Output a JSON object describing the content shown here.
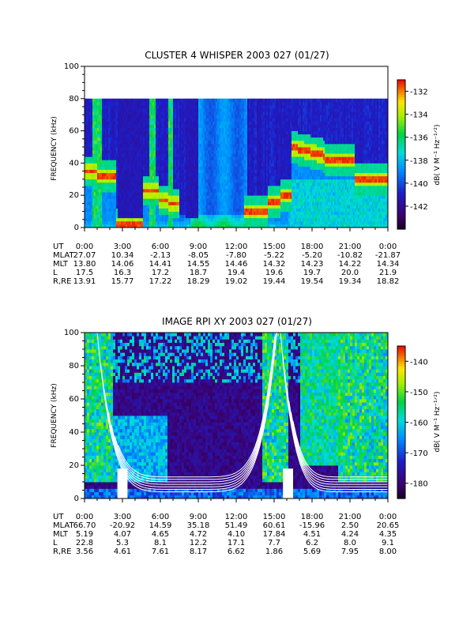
{
  "chart_data": [
    {
      "type": "heatmap",
      "title": "CLUSTER 4 WHISPER 2003 027 (01/27)",
      "ylabel": "FREQUENCY (kHz)",
      "ylim": [
        0,
        100
      ],
      "yticks": [
        "0",
        "20",
        "40",
        "60",
        "80",
        "100"
      ],
      "xticks": [
        "0:00",
        "3:00",
        "6:00",
        "9:00",
        "12:00",
        "15:00",
        "18:00",
        "21:00",
        "0:00"
      ],
      "colorbar": {
        "label": "dB( V M⁻¹ Hz⁻¹ᐟ²)",
        "ticks": [
          "-132",
          "-134",
          "-136",
          "-138",
          "-140",
          "-142"
        ],
        "range": [
          -144,
          -131
        ]
      },
      "ephemeris": [
        {
          "label": "UT",
          "values": [
            "0:00",
            "3:00",
            "6:00",
            "9:00",
            "12:00",
            "15:00",
            "18:00",
            "21:00",
            "0:00"
          ]
        },
        {
          "label": "MLAT",
          "values": [
            "27.07",
            "10.34",
            "-2.13",
            "-8.05",
            "-7.80",
            "-5.22",
            "-5.20",
            "-10.82",
            "-21.87"
          ]
        },
        {
          "label": "MLT",
          "values": [
            "13.80",
            "14.06",
            "14.41",
            "14.55",
            "14.46",
            "14.32",
            "14.23",
            "14.22",
            "14.34"
          ]
        },
        {
          "label": "L",
          "values": [
            "17.5",
            "16.3",
            "17.2",
            "18.7",
            "19.4",
            "19.6",
            "19.7",
            "20.0",
            "21.9"
          ]
        },
        {
          "label": "R,RE",
          "values": [
            "13.91",
            "15.77",
            "17.22",
            "18.29",
            "19.02",
            "19.44",
            "19.54",
            "19.34",
            "18.82"
          ]
        }
      ]
    },
    {
      "type": "heatmap",
      "title": "IMAGE RPI XY 2003 027 (01/27)",
      "ylabel": "FREQUENCY (kHz)",
      "ylim": [
        0,
        100
      ],
      "yticks": [
        "0",
        "20",
        "40",
        "60",
        "80",
        "100"
      ],
      "xticks": [
        "0:00",
        "3:00",
        "6:00",
        "9:00",
        "12:00",
        "15:00",
        "18:00",
        "21:00",
        "0:00"
      ],
      "colorbar": {
        "label": "dB( V M⁻¹ Hz⁻¹ᐟ²)",
        "ticks": [
          "-140",
          "-150",
          "-160",
          "-170",
          "-180"
        ],
        "range": [
          -185,
          -135
        ]
      },
      "ephemeris": [
        {
          "label": "UT",
          "values": [
            "0:00",
            "3:00",
            "6:00",
            "9:00",
            "12:00",
            "15:00",
            "18:00",
            "21:00",
            "0:00"
          ]
        },
        {
          "label": "MLAT",
          "values": [
            "66.70",
            "-20.92",
            "14.59",
            "35.18",
            "51.49",
            "60.61",
            "-15.96",
            "2.50",
            "20.65"
          ]
        },
        {
          "label": "MLT",
          "values": [
            "5.19",
            "4.07",
            "4.65",
            "4.72",
            "4.10",
            "17.84",
            "4.51",
            "4.24",
            "4.35"
          ]
        },
        {
          "label": "L",
          "values": [
            "22.8",
            "5.3",
            "8.1",
            "12.2",
            "17.1",
            "7.7",
            "6.2",
            "8.0",
            "9.1"
          ]
        },
        {
          "label": "R,RE",
          "values": [
            "3.56",
            "4.61",
            "7.61",
            "8.17",
            "6.62",
            "1.86",
            "5.69",
            "7.95",
            "8.00"
          ]
        }
      ]
    }
  ]
}
